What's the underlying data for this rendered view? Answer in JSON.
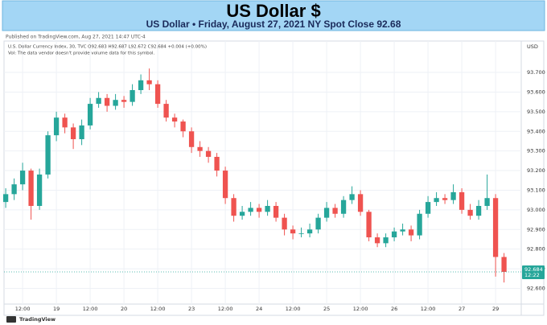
{
  "header": {
    "title": "US Dollar $",
    "subtitle": "US Dollar • Friday, August 27, 2021 NY Spot Close 92.68"
  },
  "published": "Published on TradingView.com, Aug 27, 2021 14:47 UTC-4",
  "footer": "TradingView",
  "chart_data": {
    "type": "candlestick",
    "legend_line": "U.S. Dollar Currency Index, 30, TVC O92.683 H92.687 L92.672 C92.684 +0.004 (+0.00%)",
    "volume_note": "Vol: The data vendor doesn't provide volume data for this symbol.",
    "currency": "USD",
    "up_color": "#26a69a",
    "down_color": "#ef5350",
    "grid": true,
    "last_price": {
      "value": 92.684,
      "label": "92.684"
    },
    "last_countdown": "12:22",
    "xlim": [
      -0.55,
      14.76
    ],
    "xticks": [
      {
        "value": 0,
        "label": "12:00"
      },
      {
        "value": 1,
        "label": "19"
      },
      {
        "value": 2,
        "label": "12:00"
      },
      {
        "value": 3,
        "label": "20"
      },
      {
        "value": 4,
        "label": "12:00"
      },
      {
        "value": 5,
        "label": "23"
      },
      {
        "value": 6,
        "label": "12:00"
      },
      {
        "value": 7,
        "label": "24"
      },
      {
        "value": 8,
        "label": "12:00"
      },
      {
        "value": 9,
        "label": "25"
      },
      {
        "value": 10,
        "label": "12:00"
      },
      {
        "value": 11,
        "label": "26"
      },
      {
        "value": 12,
        "label": "12:00"
      },
      {
        "value": 13,
        "label": "27"
      },
      {
        "value": 14,
        "label": "29"
      }
    ],
    "ylim": [
      92.52,
      93.86
    ],
    "yticks": [
      {
        "value": 92.6,
        "label": "92.600"
      },
      {
        "value": 92.7,
        "label": "92.700"
      },
      {
        "value": 92.8,
        "label": "92.800"
      },
      {
        "value": 92.9,
        "label": "92.900"
      },
      {
        "value": 93.0,
        "label": "93.000"
      },
      {
        "value": 93.1,
        "label": "93.100"
      },
      {
        "value": 93.2,
        "label": "93.200"
      },
      {
        "value": 93.3,
        "label": "93.300"
      },
      {
        "value": 93.4,
        "label": "93.400"
      },
      {
        "value": 93.5,
        "label": "93.500"
      },
      {
        "value": 93.6,
        "label": "93.600"
      },
      {
        "value": 93.7,
        "label": "93.700"
      }
    ],
    "x": [
      -0.5,
      -0.25,
      0,
      0.25,
      0.5,
      0.75,
      1,
      1.25,
      1.5,
      1.75,
      2,
      2.25,
      2.5,
      2.75,
      3,
      3.25,
      3.5,
      3.75,
      4,
      4.25,
      4.5,
      4.75,
      5,
      5.25,
      5.5,
      5.75,
      6,
      6.25,
      6.5,
      6.75,
      7,
      7.25,
      7.5,
      7.75,
      8,
      8.25,
      8.5,
      8.75,
      9,
      9.25,
      9.5,
      9.75,
      10,
      10.25,
      10.5,
      10.75,
      11,
      11.25,
      11.5,
      11.75,
      12,
      12.25,
      12.5,
      12.75,
      13,
      13.25,
      13.5,
      13.75,
      14,
      14.25
    ],
    "open": [
      93.04,
      93.08,
      93.13,
      93.2,
      93.02,
      93.18,
      93.38,
      93.47,
      93.42,
      93.36,
      93.43,
      93.54,
      93.57,
      93.53,
      93.56,
      93.55,
      93.61,
      93.66,
      93.64,
      93.54,
      93.47,
      93.45,
      93.4,
      93.32,
      93.3,
      93.27,
      93.2,
      93.06,
      92.97,
      92.99,
      93.01,
      92.99,
      93.02,
      92.96,
      92.9,
      92.88,
      92.88,
      92.9,
      92.96,
      93.01,
      92.98,
      93.05,
      93.08,
      92.99,
      92.86,
      92.83,
      92.86,
      92.89,
      92.9,
      92.87,
      92.98,
      93.04,
      93.06,
      93.05,
      93.09,
      93.0,
      92.97,
      93.02,
      93.06,
      92.76
    ],
    "high": [
      93.11,
      93.16,
      93.24,
      93.21,
      93.21,
      93.4,
      93.5,
      93.49,
      93.44,
      93.46,
      93.57,
      93.6,
      93.59,
      93.59,
      93.58,
      93.64,
      93.69,
      93.72,
      93.66,
      93.56,
      93.49,
      93.46,
      93.42,
      93.35,
      93.32,
      93.29,
      93.22,
      93.08,
      93.02,
      93.04,
      93.03,
      93.05,
      93.04,
      92.98,
      92.92,
      92.91,
      92.93,
      92.98,
      93.04,
      93.03,
      93.07,
      93.12,
      93.1,
      93.0,
      92.88,
      92.88,
      92.91,
      92.93,
      92.92,
      93.0,
      93.07,
      93.09,
      93.08,
      93.13,
      93.11,
      93.03,
      93.05,
      93.18,
      93.08,
      92.78
    ],
    "low": [
      93.01,
      93.05,
      93.1,
      92.95,
      93.0,
      93.16,
      93.35,
      93.39,
      93.31,
      93.33,
      93.41,
      93.52,
      93.5,
      93.51,
      93.52,
      93.53,
      93.59,
      93.61,
      93.52,
      93.45,
      93.42,
      93.37,
      93.29,
      93.27,
      93.24,
      93.17,
      93.03,
      92.94,
      92.95,
      92.97,
      92.96,
      92.97,
      92.94,
      92.87,
      92.85,
      92.86,
      92.86,
      92.88,
      92.94,
      92.96,
      92.96,
      93.03,
      92.97,
      92.84,
      92.81,
      92.81,
      92.84,
      92.87,
      92.84,
      92.85,
      92.96,
      93.02,
      93.03,
      93.03,
      92.98,
      92.95,
      92.95,
      93.0,
      92.66,
      92.63
    ],
    "close": [
      93.08,
      93.13,
      93.2,
      93.02,
      93.18,
      93.38,
      93.47,
      93.42,
      93.36,
      93.43,
      93.54,
      93.57,
      93.53,
      93.56,
      93.55,
      93.61,
      93.66,
      93.64,
      93.54,
      93.47,
      93.45,
      93.4,
      93.32,
      93.3,
      93.27,
      93.2,
      93.06,
      92.97,
      92.99,
      93.01,
      92.99,
      93.02,
      92.96,
      92.9,
      92.88,
      92.88,
      92.9,
      92.96,
      93.01,
      92.98,
      93.05,
      93.08,
      92.99,
      92.86,
      92.83,
      92.86,
      92.89,
      92.9,
      92.87,
      92.98,
      93.04,
      93.06,
      93.05,
      93.09,
      93.0,
      92.97,
      93.02,
      93.06,
      92.76,
      92.684
    ]
  }
}
